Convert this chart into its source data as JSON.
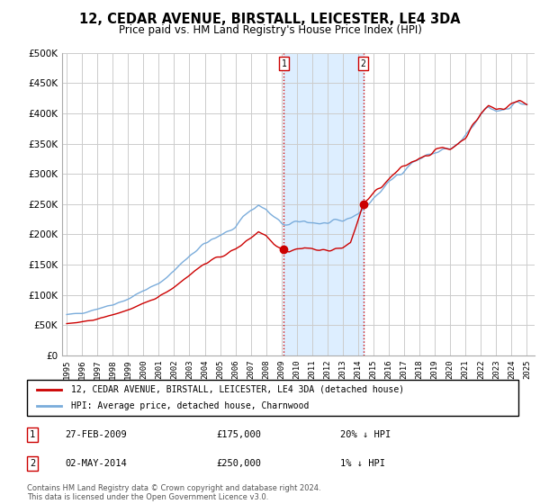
{
  "title": "12, CEDAR AVENUE, BIRSTALL, LEICESTER, LE4 3DA",
  "subtitle": "Price paid vs. HM Land Registry's House Price Index (HPI)",
  "ylim": [
    0,
    500000
  ],
  "yticks": [
    0,
    50000,
    100000,
    150000,
    200000,
    250000,
    300000,
    350000,
    400000,
    450000,
    500000
  ],
  "ytick_labels": [
    "£0",
    "£50K",
    "£100K",
    "£150K",
    "£200K",
    "£250K",
    "£300K",
    "£350K",
    "£400K",
    "£450K",
    "£500K"
  ],
  "purchase1_x": 2009.15,
  "purchase1_price": 175000,
  "purchase2_x": 2014.33,
  "purchase2_price": 250000,
  "purchase1_date": "27-FEB-2009",
  "purchase1_hpi": "20% ↓ HPI",
  "purchase2_date": "02-MAY-2014",
  "purchase2_hpi": "1% ↓ HPI",
  "shade_color": "#ddeeff",
  "line1_color": "#cc0000",
  "line2_color": "#7aacdb",
  "vline_color": "#cc0000",
  "legend1_label": "12, CEDAR AVENUE, BIRSTALL, LEICESTER, LE4 3DA (detached house)",
  "legend2_label": "HPI: Average price, detached house, Charnwood",
  "footer": "Contains HM Land Registry data © Crown copyright and database right 2024.\nThis data is licensed under the Open Government Licence v3.0.",
  "background_color": "#ffffff",
  "grid_color": "#cccccc",
  "xlim_left": 1994.7,
  "xlim_right": 2025.5,
  "xtick_years": [
    1995,
    1996,
    1997,
    1998,
    1999,
    2000,
    2001,
    2002,
    2003,
    2004,
    2005,
    2006,
    2007,
    2008,
    2009,
    2010,
    2011,
    2012,
    2013,
    2014,
    2015,
    2016,
    2017,
    2018,
    2019,
    2020,
    2021,
    2022,
    2023,
    2024,
    2025
  ]
}
